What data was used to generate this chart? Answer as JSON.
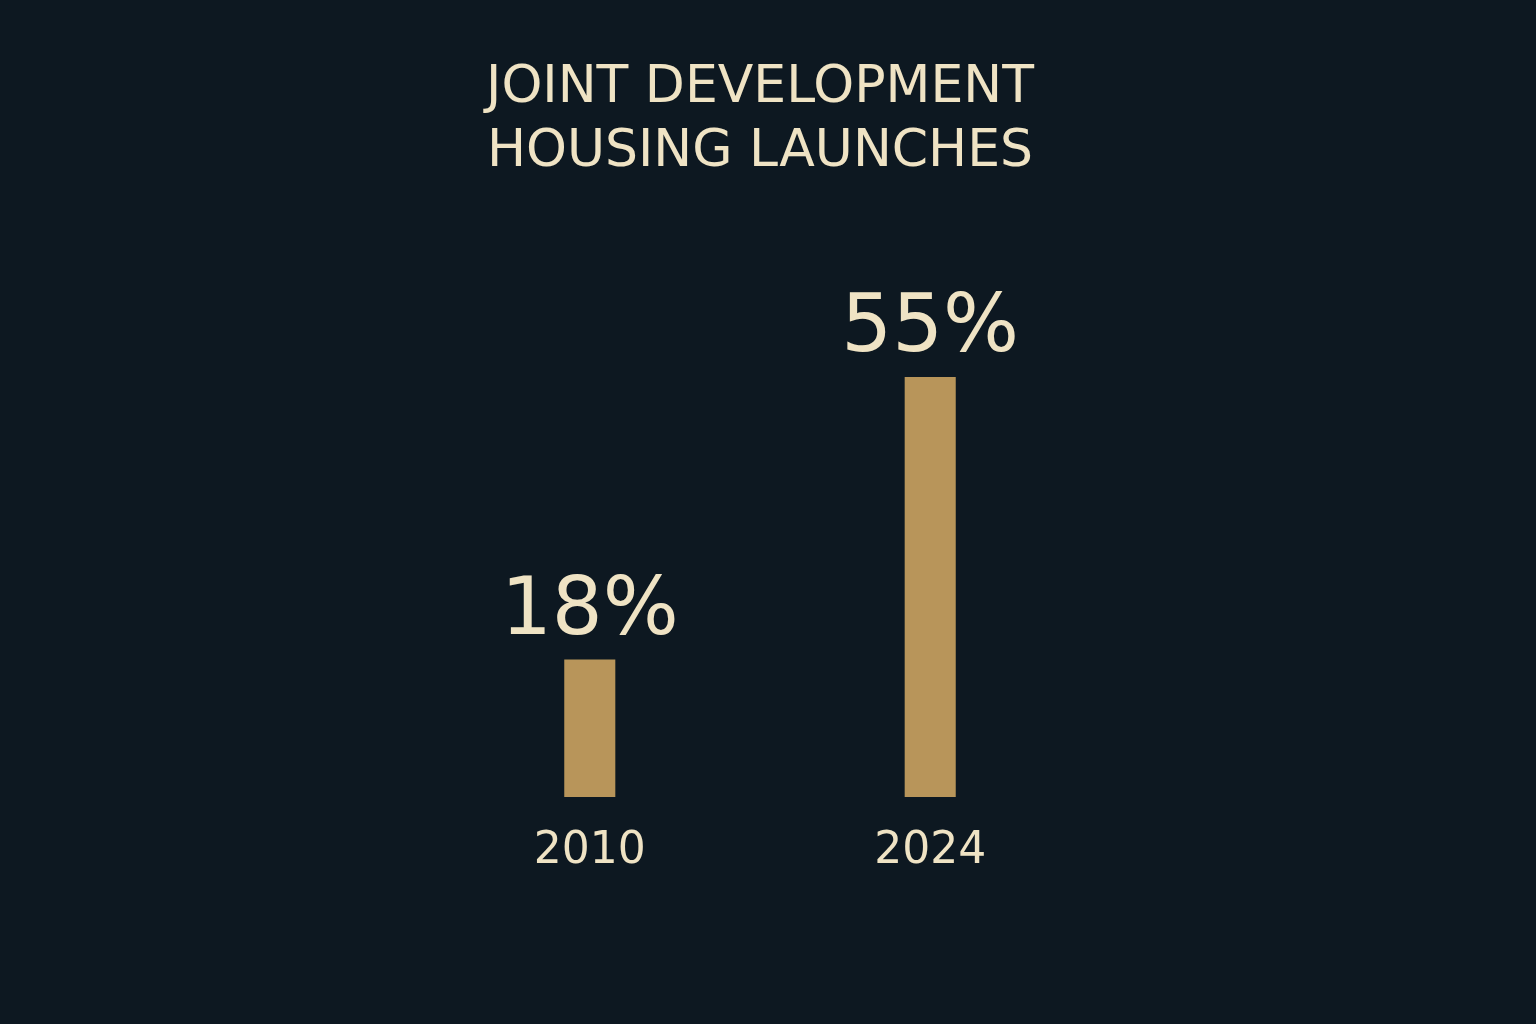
{
  "chart_data": {
    "type": "bar",
    "title": "JOINT DEVELOPMENT\nHOUSING LAUNCHES",
    "categories": [
      "2010",
      "2024"
    ],
    "values": [
      18,
      55
    ],
    "value_labels": [
      "18%",
      "55%"
    ],
    "color": "#b8955a",
    "tick_labels": "x",
    "grid": false
  }
}
